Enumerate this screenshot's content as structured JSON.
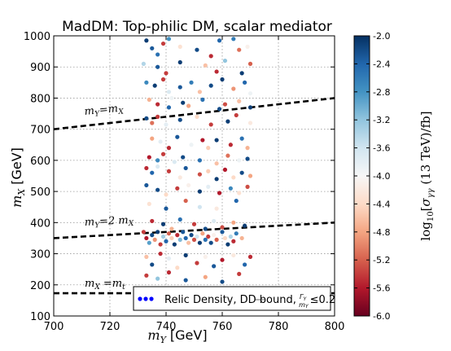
{
  "chart_data": {
    "type": "scatter",
    "title": "MadDM: Top-philic DM, scalar mediator",
    "xlabel": "m_Y [GeV]",
    "ylabel": "m_X [GeV]",
    "xlim": [
      700,
      800
    ],
    "ylim": [
      100,
      1000
    ],
    "x_ticks": [
      "700",
      "720",
      "740",
      "760",
      "780",
      "800"
    ],
    "y_ticks": [
      "100",
      "200",
      "300",
      "400",
      "500",
      "600",
      "700",
      "800",
      "900",
      "1000"
    ],
    "grid": true,
    "colorbar": {
      "label": "log10[σ_γγ (13 TeV)/fb]",
      "range": [
        -6.0,
        -2.0
      ],
      "ticks": [
        "-2.0",
        "-2.4",
        "-2.8",
        "-3.2",
        "-3.6",
        "-4.0",
        "-4.4",
        "-4.8",
        "-5.2",
        "-5.6",
        "-6.0"
      ],
      "colormap": "RdBu",
      "colors": [
        "#67001f",
        "#b2182b",
        "#d6604d",
        "#f4a582",
        "#fddbc7",
        "#f7f7f7",
        "#d1e5f0",
        "#92c5de",
        "#4393c3",
        "#2166ac",
        "#053061"
      ]
    },
    "lines": [
      {
        "label": "m_Y = m_X",
        "style": "dashed",
        "points": [
          [
            700,
            700
          ],
          [
            800,
            800
          ]
        ]
      },
      {
        "label": "m_Y = 2 m_X",
        "style": "dashed",
        "points": [
          [
            700,
            350
          ],
          [
            800,
            400
          ]
        ]
      },
      {
        "label": "m_X = m_t",
        "style": "dashed",
        "points": [
          [
            700,
            173
          ],
          [
            800,
            173
          ]
        ]
      }
    ],
    "legend": {
      "label": "Relic Density, DD bound, Γ_Y/m_Y ≤ 0.2",
      "location": "lower-right"
    },
    "points": [
      [
        733,
        985,
        -5.9
      ],
      [
        735,
        960,
        -5.7
      ],
      [
        737,
        940,
        -5.5
      ],
      [
        739,
        975,
        -2.6
      ],
      [
        741,
        990,
        -5.2
      ],
      [
        745,
        965,
        -3.7
      ],
      [
        751,
        955,
        -5.8
      ],
      [
        756,
        935,
        -2.5
      ],
      [
        759,
        985,
        -5.6
      ],
      [
        764,
        990,
        -5.4
      ],
      [
        766,
        955,
        -2.9
      ],
      [
        769,
        965,
        -3.9
      ],
      [
        732,
        910,
        -4.6
      ],
      [
        737,
        900,
        -5.7
      ],
      [
        740,
        880,
        -2.6
      ],
      [
        745,
        915,
        -5.9
      ],
      [
        754,
        905,
        -3.4
      ],
      [
        758,
        885,
        -2.5
      ],
      [
        761,
        920,
        -4.8
      ],
      [
        767,
        880,
        -5.9
      ],
      [
        770,
        910,
        -2.8
      ],
      [
        733,
        850,
        -5.3
      ],
      [
        736,
        840,
        -5.9
      ],
      [
        739,
        860,
        -2.6
      ],
      [
        741,
        820,
        -4.3
      ],
      [
        745,
        835,
        -5.7
      ],
      [
        749,
        850,
        -5.4
      ],
      [
        752,
        820,
        -3.4
      ],
      [
        756,
        840,
        -5.8
      ],
      [
        760,
        860,
        -5.9
      ],
      [
        764,
        830,
        -3.1
      ],
      [
        768,
        850,
        -5.6
      ],
      [
        770,
        815,
        -4.1
      ],
      [
        734,
        795,
        -3.3
      ],
      [
        737,
        780,
        -2.5
      ],
      [
        741,
        770,
        -5.6
      ],
      [
        742,
        800,
        -4.1
      ],
      [
        746,
        785,
        -5.9
      ],
      [
        748,
        775,
        -3.2
      ],
      [
        753,
        795,
        -5.5
      ],
      [
        759,
        765,
        -5.8
      ],
      [
        761,
        780,
        -2.7
      ],
      [
        766,
        790,
        -3.4
      ],
      [
        770,
        770,
        -5.9
      ],
      [
        733,
        735,
        -5.8
      ],
      [
        735,
        720,
        -2.9
      ],
      [
        737,
        740,
        -2.6
      ],
      [
        740,
        715,
        -4.2
      ],
      [
        745,
        730,
        -5.8
      ],
      [
        751,
        740,
        -3.6
      ],
      [
        756,
        715,
        -2.6
      ],
      [
        762,
        725,
        -5.9
      ],
      [
        765,
        745,
        -2.6
      ],
      [
        770,
        720,
        -3.8
      ],
      [
        735,
        670,
        -3.2
      ],
      [
        738,
        660,
        -4.2
      ],
      [
        741,
        640,
        -2.5
      ],
      [
        744,
        675,
        -5.7
      ],
      [
        749,
        650,
        -4.1
      ],
      [
        753,
        665,
        -2.4
      ],
      [
        755,
        640,
        -3.5
      ],
      [
        758,
        665,
        -5.9
      ],
      [
        763,
        650,
        -2.5
      ],
      [
        767,
        670,
        -5.5
      ],
      [
        769,
        640,
        -3.3
      ],
      [
        734,
        610,
        -2.4
      ],
      [
        737,
        600,
        -5.3
      ],
      [
        739,
        620,
        -2.6
      ],
      [
        743,
        595,
        -4.3
      ],
      [
        746,
        610,
        -5.8
      ],
      [
        752,
        600,
        -5.5
      ],
      [
        758,
        590,
        -3.4
      ],
      [
        762,
        615,
        -2.9
      ],
      [
        766,
        600,
        -4.1
      ],
      [
        769,
        605,
        -5.8
      ],
      [
        733,
        575,
        -2.5
      ],
      [
        735,
        560,
        -5.6
      ],
      [
        737,
        580,
        -4.3
      ],
      [
        741,
        565,
        -2.6
      ],
      [
        745,
        545,
        -3.8
      ],
      [
        747,
        575,
        -5.7
      ],
      [
        752,
        555,
        -2.7
      ],
      [
        755,
        565,
        -3.5
      ],
      [
        758,
        540,
        -5.9
      ],
      [
        761,
        570,
        -2.4
      ],
      [
        764,
        545,
        -3.6
      ],
      [
        767,
        560,
        -5.8
      ],
      [
        770,
        550,
        -3.2
      ],
      [
        733,
        520,
        -5.7
      ],
      [
        737,
        505,
        -5.8
      ],
      [
        740,
        490,
        -3.6
      ],
      [
        744,
        510,
        -2.6
      ],
      [
        748,
        520,
        -3.9
      ],
      [
        752,
        500,
        -5.9
      ],
      [
        755,
        515,
        -4.2
      ],
      [
        759,
        495,
        -2.4
      ],
      [
        763,
        510,
        -5.3
      ],
      [
        766,
        495,
        -3.7
      ],
      [
        769,
        515,
        -2.7
      ],
      [
        734,
        460,
        -3.7
      ],
      [
        740,
        445,
        -5.7
      ],
      [
        747,
        470,
        -2.8
      ],
      [
        752,
        450,
        -4.4
      ],
      [
        758,
        445,
        -3.8
      ],
      [
        765,
        470,
        -5.6
      ],
      [
        735,
        405,
        -2.5
      ],
      [
        739,
        395,
        -5.9
      ],
      [
        742,
        380,
        -3.3
      ],
      [
        745,
        410,
        -5.5
      ],
      [
        750,
        395,
        -2.6
      ],
      [
        754,
        380,
        -5.8
      ],
      [
        757,
        405,
        -4.3
      ],
      [
        760,
        385,
        -2.7
      ],
      [
        764,
        400,
        -3.2
      ],
      [
        768,
        390,
        -5.9
      ],
      [
        732,
        370,
        -2.6
      ],
      [
        733,
        350,
        -2.4
      ],
      [
        734,
        335,
        -5.1
      ],
      [
        735,
        360,
        -5.8
      ],
      [
        736,
        345,
        -3.1
      ],
      [
        737,
        370,
        -5.9
      ],
      [
        738,
        330,
        -2.6
      ],
      [
        739,
        355,
        -4.7
      ],
      [
        740,
        340,
        -5.6
      ],
      [
        741,
        365,
        -2.8
      ],
      [
        742,
        350,
        -3.5
      ],
      [
        743,
        330,
        -5.9
      ],
      [
        744,
        360,
        -2.5
      ],
      [
        745,
        345,
        -4.9
      ],
      [
        746,
        370,
        -5.7
      ],
      [
        747,
        350,
        -5.6
      ],
      [
        748,
        335,
        -3.4
      ],
      [
        749,
        360,
        -5.8
      ],
      [
        750,
        345,
        -2.7
      ],
      [
        751,
        355,
        -4.4
      ],
      [
        752,
        335,
        -5.9
      ],
      [
        753,
        365,
        -3.2
      ],
      [
        754,
        345,
        -5.5
      ],
      [
        755,
        355,
        -2.6
      ],
      [
        756,
        335,
        -5.8
      ],
      [
        757,
        360,
        -3.9
      ],
      [
        758,
        345,
        -2.8
      ],
      [
        760,
        370,
        -5.7
      ],
      [
        761,
        350,
        -3.6
      ],
      [
        762,
        330,
        -5.9
      ],
      [
        763,
        355,
        -4.6
      ],
      [
        764,
        340,
        -2.5
      ],
      [
        765,
        365,
        -5.4
      ],
      [
        767,
        350,
        -3.3
      ],
      [
        733,
        290,
        -3.4
      ],
      [
        735,
        265,
        -5.8
      ],
      [
        738,
        300,
        -2.5
      ],
      [
        741,
        285,
        -4.2
      ],
      [
        744,
        255,
        -3.6
      ],
      [
        747,
        295,
        -5.9
      ],
      [
        751,
        270,
        -2.6
      ],
      [
        754,
        290,
        -3.9
      ],
      [
        757,
        260,
        -5.7
      ],
      [
        760,
        280,
        -2.4
      ],
      [
        764,
        295,
        -3.8
      ],
      [
        768,
        265,
        -5.6
      ],
      [
        770,
        290,
        -2.5
      ],
      [
        733,
        230,
        -2.6
      ],
      [
        737,
        220,
        -4.8
      ],
      [
        741,
        240,
        -2.5
      ],
      [
        747,
        215,
        -5.7
      ],
      [
        754,
        225,
        -3.2
      ],
      [
        760,
        210,
        -5.8
      ],
      [
        766,
        235,
        -2.6
      ]
    ]
  }
}
